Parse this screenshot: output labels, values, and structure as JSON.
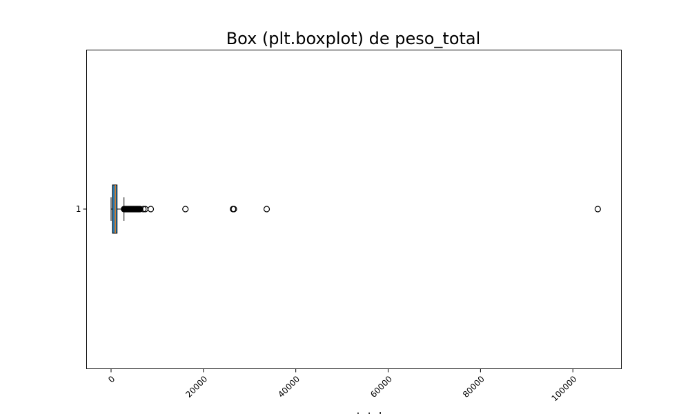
{
  "chart_data": {
    "type": "boxplot",
    "orientation": "horizontal",
    "title": "Box (plt.boxplot) de peso_total",
    "xlabel": "peso_total",
    "ylabel": "",
    "xlim": [
      -5300,
      110500
    ],
    "xticks": [
      0,
      20000,
      40000,
      60000,
      80000,
      100000
    ],
    "xtick_labels": [
      "0",
      "20000",
      "40000",
      "60000",
      "80000",
      "100000"
    ],
    "xtick_rotation": 45,
    "ytick_labels": [
      "1"
    ],
    "grid": false,
    "legend": "none",
    "series": [
      {
        "position": 1,
        "category": "1",
        "whisker_low": 0,
        "q1": 300,
        "median": 900,
        "q3": 1300,
        "whisker_high": 2800,
        "outliers": [
          2800,
          2900,
          3000,
          3100,
          3200,
          3300,
          3400,
          3500,
          3600,
          3700,
          3800,
          3900,
          4000,
          4100,
          4200,
          4300,
          4400,
          4500,
          4600,
          4700,
          4800,
          4900,
          5000,
          5100,
          5200,
          5300,
          5400,
          5500,
          5600,
          5700,
          5800,
          5900,
          6000,
          6100,
          6200,
          6300,
          7000,
          7400,
          8600,
          16100,
          26400,
          26600,
          33700,
          105400
        ]
      }
    ],
    "colors": {
      "box_fill": "#1f77b4",
      "box_edge": "#000000",
      "median": "#ff7f0e",
      "outlier_edge": "#000000"
    }
  }
}
